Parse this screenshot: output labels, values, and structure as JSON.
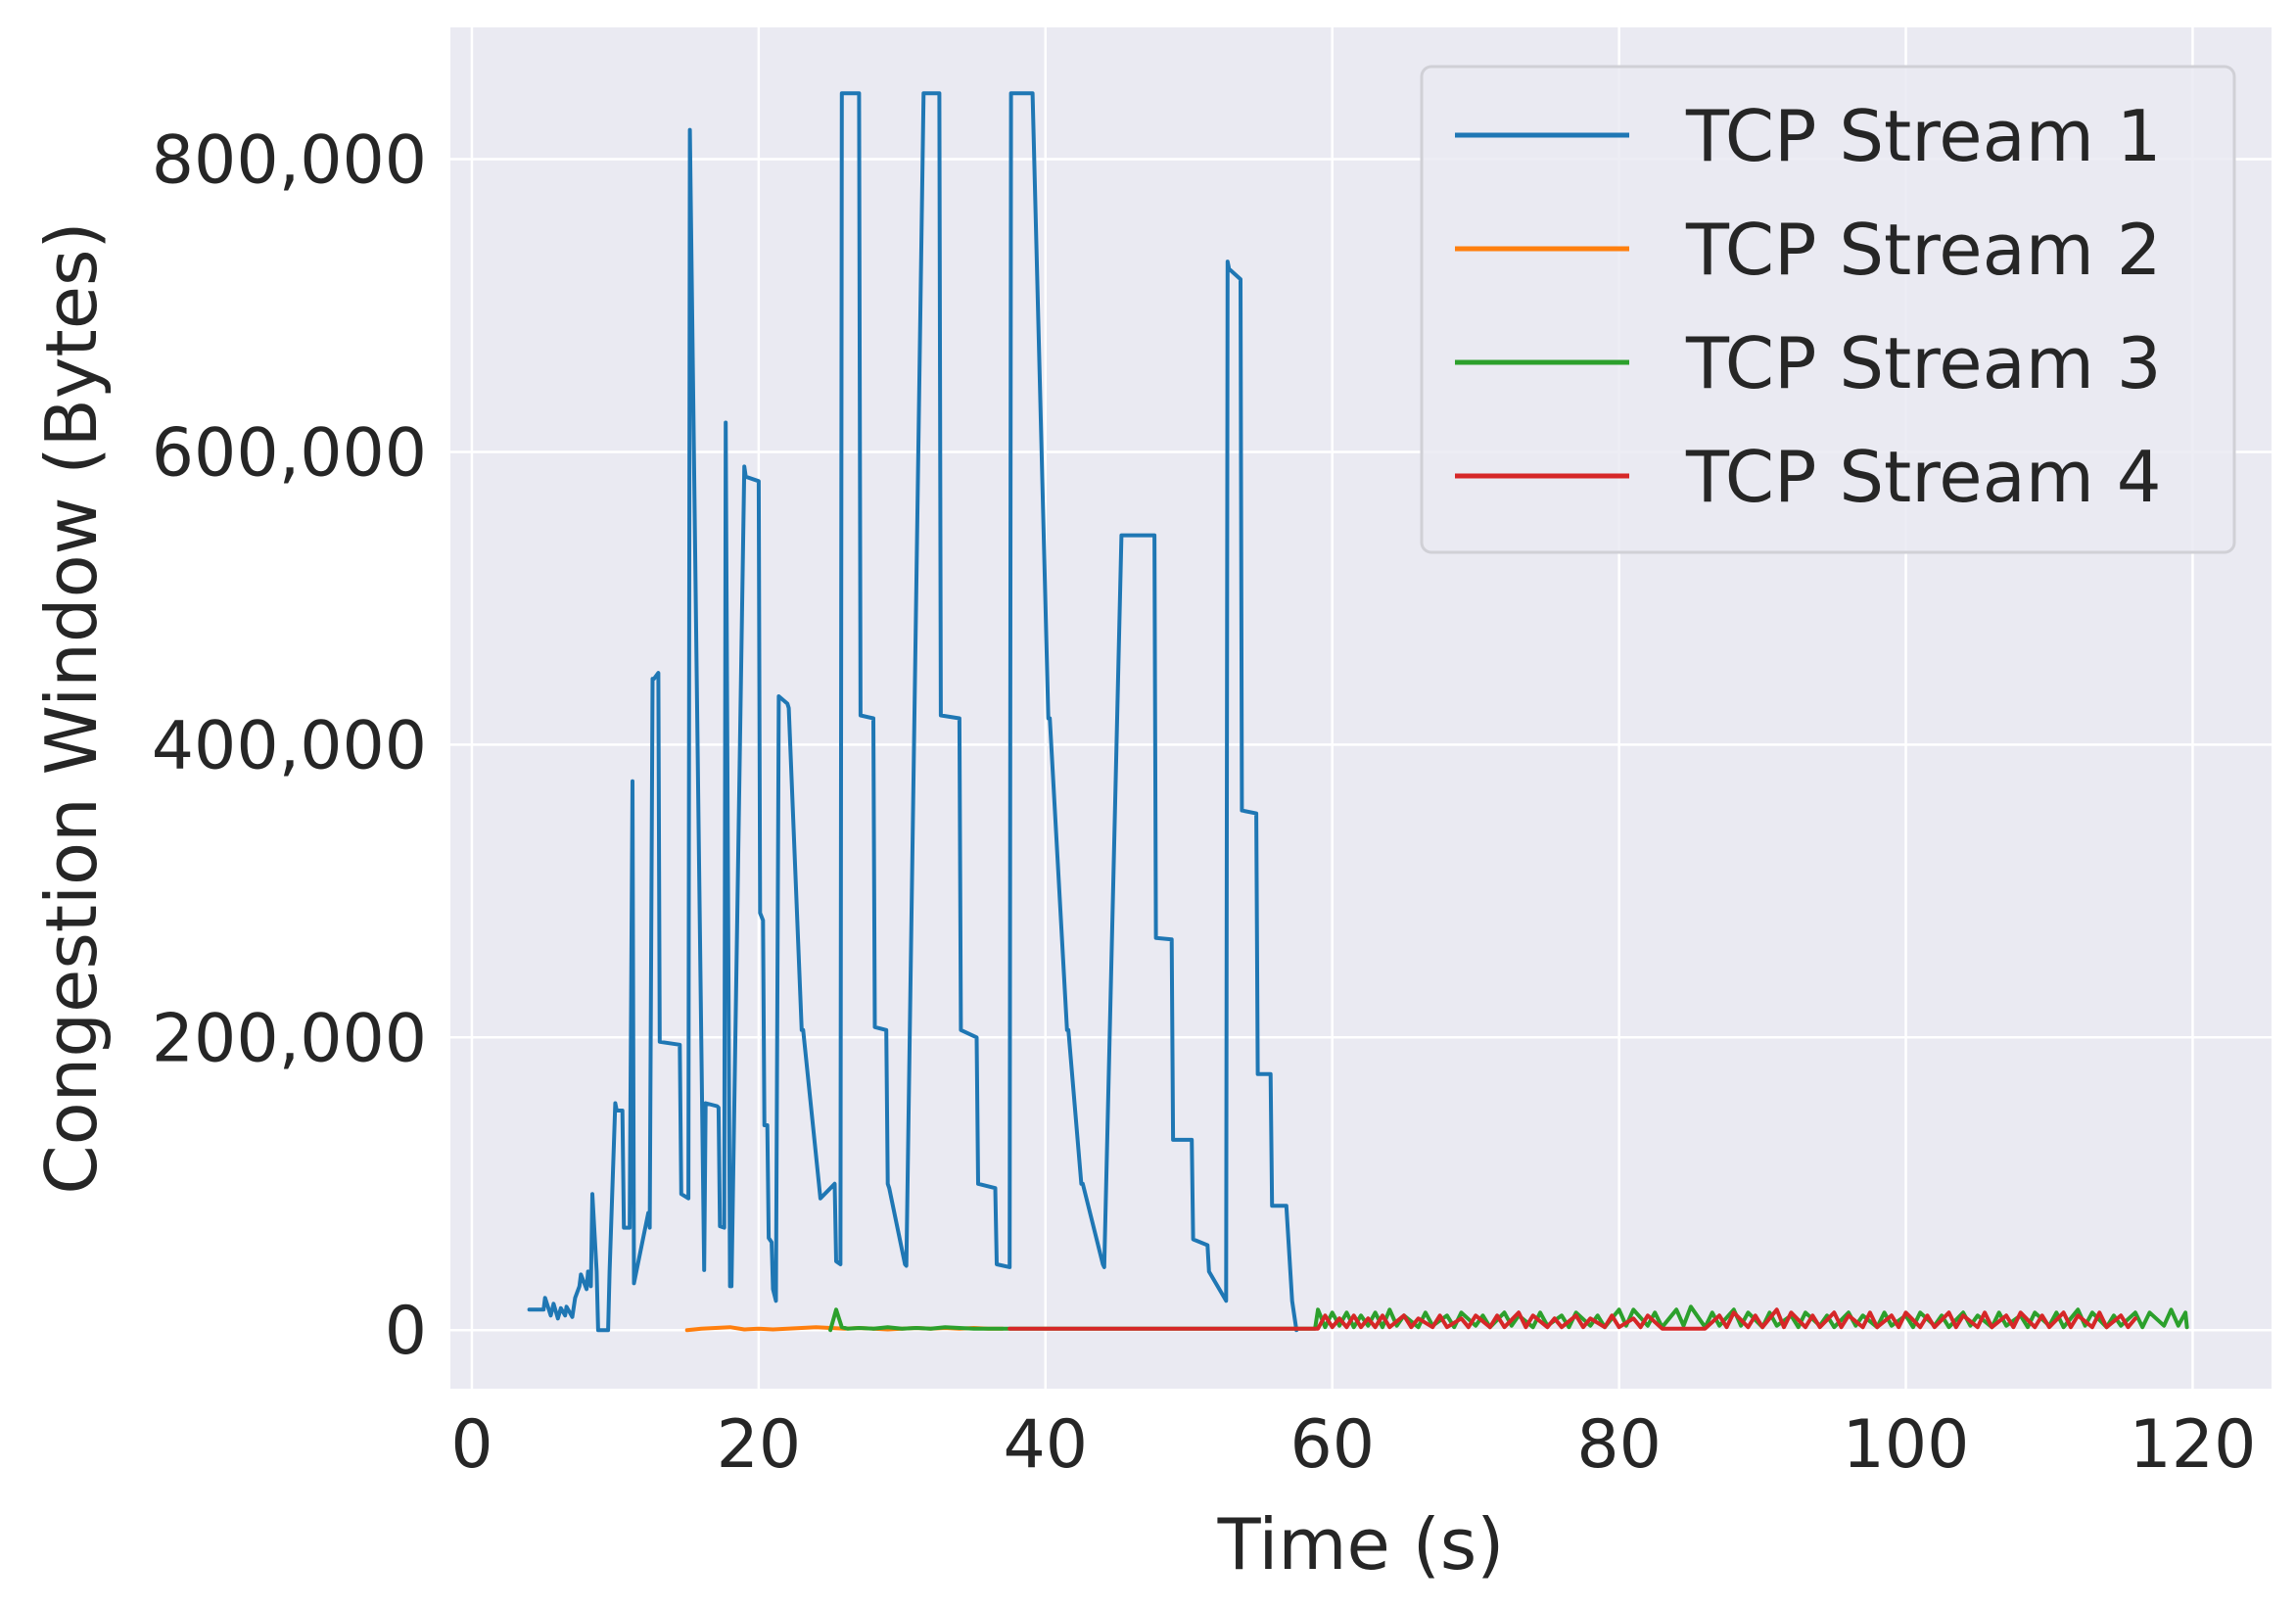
{
  "chart_data": {
    "type": "line",
    "title": "",
    "xlabel": "Time (s)",
    "ylabel": "Congestion Window (Bytes)",
    "xlim": [
      -1.5,
      125.5
    ],
    "ylim": [
      -40000,
      890000
    ],
    "xticks": [
      0,
      20,
      40,
      60,
      80,
      100,
      120
    ],
    "xtick_labels": [
      "0",
      "20",
      "40",
      "60",
      "80",
      "100",
      "120"
    ],
    "yticks": [
      0,
      200000,
      400000,
      600000,
      800000
    ],
    "ytick_labels": [
      "0",
      "200,000",
      "400,000",
      "600,000",
      "800,000"
    ],
    "grid": true,
    "background": "#eaeaf2",
    "legend_position": "top-right",
    "series": [
      {
        "name": "TCP Stream 1",
        "color": "#1f77b4",
        "x": [
          4.0,
          5.0,
          5.1,
          5.5,
          5.7,
          6.0,
          6.2,
          6.5,
          6.6,
          7.0,
          7.2,
          7.5,
          7.6,
          8.0,
          8.1,
          8.3,
          8.4,
          8.7,
          8.8,
          9.5,
          9.6,
          10.0,
          10.1,
          10.5,
          10.6,
          11.0,
          11.2,
          11.3,
          12.3,
          12.4,
          12.6,
          12.7,
          13.0,
          13.1,
          14.5,
          14.6,
          15.1,
          15.2,
          16.2,
          16.3,
          17.1,
          17.2,
          17.3,
          17.6,
          17.7,
          18.0,
          18.1,
          19.0,
          19.1,
          20.0,
          20.1,
          20.3,
          20.4,
          20.6,
          20.7,
          20.9,
          21.0,
          21.2,
          21.4,
          22.0,
          22.1,
          23.0,
          23.1,
          24.2,
          24.3,
          25.3,
          25.4,
          25.7,
          25.8,
          25.9,
          27.0,
          27.1,
          28.0,
          28.1,
          28.9,
          29.0,
          29.1,
          30.2,
          30.3,
          31.5,
          31.6,
          32.6,
          32.7,
          34.0,
          34.1,
          35.2,
          35.3,
          36.5,
          36.6,
          37.5,
          37.6,
          39.0,
          39.1,
          40.2,
          40.3,
          41.5,
          41.6,
          42.5,
          42.6,
          44.0,
          44.1,
          45.3,
          45.4,
          47.6,
          47.7,
          48.8,
          48.9,
          50.2,
          50.3,
          51.3,
          51.4,
          52.6,
          52.7,
          52.8,
          53.6,
          53.7,
          54.7,
          54.8,
          55.7,
          55.8,
          56.8,
          57.2,
          57.5
        ],
        "y": [
          14000,
          14000,
          22000,
          10000,
          18000,
          8000,
          15000,
          10000,
          16000,
          9000,
          22000,
          30000,
          38000,
          28000,
          40000,
          30000,
          93000,
          40000,
          0,
          0,
          40000,
          155000,
          150000,
          150000,
          70000,
          70000,
          375000,
          32000,
          80000,
          70000,
          445000,
          445000,
          449000,
          197000,
          195000,
          93000,
          90000,
          820000,
          41000,
          155000,
          153000,
          152000,
          71000,
          70000,
          620000,
          30000,
          30000,
          590000,
          583000,
          580000,
          285000,
          280000,
          140000,
          140000,
          63000,
          60000,
          28000,
          20000,
          433000,
          428000,
          425000,
          205000,
          205000,
          100000,
          90000,
          100000,
          47000,
          45000,
          845000,
          845000,
          845000,
          420000,
          418000,
          207000,
          205000,
          100000,
          97000,
          45000,
          44000,
          845000,
          845000,
          845000,
          420000,
          418000,
          205000,
          200000,
          100000,
          97000,
          45000,
          43000,
          845000,
          845000,
          845000,
          418000,
          418000,
          205000,
          205000,
          100000,
          100000,
          45000,
          43000,
          543000,
          543000,
          543000,
          268000,
          267000,
          130000,
          130000,
          62000,
          58000,
          40000,
          20000,
          730000,
          725000,
          718000,
          355000,
          353000,
          175000,
          175000,
          85000,
          85000,
          20000,
          0
        ]
      },
      {
        "name": "TCP Stream 2",
        "color": "#ff7f0e",
        "x": [
          15.0,
          16.0,
          17.0,
          18.0,
          19.0,
          20.0,
          21.0,
          22.0,
          23.0,
          24.0,
          25.0,
          26.0,
          27.0,
          28.0,
          29.0,
          30.0,
          31.0,
          32.0,
          33.0,
          34.0,
          35.0,
          36.0,
          37.0
        ],
        "y": [
          0,
          1000,
          1500,
          2000,
          500,
          1000,
          500,
          1000,
          1500,
          2000,
          1500,
          1000,
          1500,
          1000,
          500,
          1000,
          1500,
          1000,
          1500,
          1000,
          1500,
          1000,
          1000
        ]
      },
      {
        "name": "TCP Stream 3",
        "color": "#2ca02c",
        "x": [
          25.0,
          25.4,
          25.8,
          26.2,
          27.0,
          28.0,
          29.0,
          30.0,
          31.0,
          32.0,
          33.0,
          34.0,
          35.0,
          36.0,
          37.0,
          40.0,
          45.0,
          50.0,
          55.0,
          58.0,
          58.8,
          59.0,
          59.5,
          60.0,
          60.5,
          61.0,
          61.5,
          62.0,
          62.5,
          63.0,
          63.5,
          64.0,
          64.5,
          65.0,
          66.0,
          66.5,
          67.0,
          68.0,
          68.5,
          69.0,
          70.0,
          70.5,
          71.0,
          72.0,
          72.5,
          73.0,
          74.0,
          74.5,
          75.0,
          76.0,
          76.5,
          77.0,
          78.0,
          78.5,
          79.0,
          80.0,
          80.5,
          81.0,
          82.0,
          82.5,
          83.0,
          84.0,
          84.5,
          85.0,
          86.0,
          86.5,
          87.0,
          88.0,
          88.5,
          89.0,
          90.0,
          90.5,
          91.0,
          92.0,
          92.5,
          93.0,
          94.0,
          94.5,
          95.0,
          96.0,
          96.5,
          97.0,
          98.0,
          98.5,
          99.0,
          100.0,
          100.5,
          101.0,
          102.0,
          102.5,
          103.0,
          104.0,
          104.5,
          105.0,
          106.0,
          106.5,
          107.0,
          108.0,
          108.5,
          109.0,
          110.0,
          110.5,
          111.0,
          112.0,
          112.5,
          113.0,
          114.0,
          114.5,
          115.0,
          116.0,
          116.5,
          117.0,
          118.0,
          118.5,
          119.0,
          119.5,
          119.6
        ],
        "y": [
          0,
          14000,
          2000,
          1000,
          1500,
          1000,
          2000,
          1000,
          1500,
          1000,
          2000,
          1500,
          1000,
          1000,
          1000,
          1000,
          1000,
          1000,
          1000,
          1000,
          1000,
          14000,
          2000,
          12000,
          3000,
          12000,
          2000,
          10000,
          3000,
          12000,
          2000,
          14000,
          3000,
          10000,
          2000,
          12000,
          3000,
          10000,
          2000,
          12000,
          3000,
          10000,
          2000,
          12000,
          3000,
          10000,
          2000,
          12000,
          3000,
          10000,
          2000,
          12000,
          3000,
          10000,
          2000,
          14000,
          3000,
          14000,
          3000,
          12000,
          2000,
          14000,
          3000,
          16000,
          2000,
          12000,
          3000,
          14000,
          3000,
          12000,
          2000,
          12000,
          3000,
          10000,
          2000,
          12000,
          3000,
          10000,
          2000,
          12000,
          3000,
          10000,
          2000,
          12000,
          3000,
          10000,
          2000,
          12000,
          3000,
          10000,
          2000,
          12000,
          3000,
          10000,
          2000,
          12000,
          3000,
          10000,
          2000,
          12000,
          3000,
          12000,
          2000,
          14000,
          3000,
          12000,
          2000,
          10000,
          3000,
          12000,
          2000,
          12000,
          3000,
          14000,
          3000,
          12000,
          2000
        ]
      },
      {
        "name": "TCP Stream 4",
        "color": "#d62728",
        "x": [
          37.5,
          40.0,
          45.0,
          50.0,
          55.0,
          58.0,
          59.0,
          59.5,
          60.0,
          60.5,
          61.0,
          61.5,
          62.0,
          62.5,
          63.0,
          63.5,
          64.0,
          65.0,
          65.5,
          66.0,
          67.0,
          67.5,
          68.0,
          69.0,
          69.5,
          70.0,
          71.0,
          71.5,
          72.0,
          73.0,
          73.5,
          74.0,
          75.0,
          75.5,
          76.0,
          77.0,
          77.5,
          78.0,
          79.0,
          79.5,
          80.0,
          81.0,
          81.5,
          82.0,
          83.0,
          84.0,
          85.0,
          86.0,
          87.0,
          87.5,
          88.0,
          89.0,
          89.5,
          90.0,
          91.0,
          91.5,
          92.0,
          93.0,
          93.5,
          94.0,
          95.0,
          95.5,
          96.0,
          97.0,
          97.5,
          98.0,
          99.0,
          99.5,
          100.0,
          101.0,
          101.5,
          102.0,
          103.0,
          103.5,
          104.0,
          105.0,
          105.5,
          106.0,
          107.0,
          107.5,
          108.0,
          109.0,
          109.5,
          110.0,
          111.0,
          111.5,
          112.0,
          113.0,
          113.5,
          114.0,
          115.0,
          115.5,
          116.0
        ],
        "y": [
          1000,
          1000,
          1000,
          1000,
          1000,
          1000,
          1000,
          10000,
          2000,
          8000,
          2000,
          10000,
          2000,
          8000,
          2000,
          10000,
          2000,
          10000,
          2000,
          8000,
          2000,
          10000,
          2000,
          8000,
          2000,
          10000,
          2000,
          10000,
          2000,
          12000,
          2000,
          10000,
          2000,
          8000,
          2000,
          10000,
          2000,
          8000,
          2000,
          10000,
          2000,
          8000,
          2000,
          10000,
          1000,
          1000,
          1000,
          1000,
          10000,
          2000,
          12000,
          2000,
          10000,
          2000,
          14000,
          2000,
          12000,
          2000,
          10000,
          2000,
          12000,
          2000,
          10000,
          2000,
          12000,
          2000,
          10000,
          2000,
          12000,
          2000,
          10000,
          2000,
          12000,
          2000,
          10000,
          2000,
          12000,
          2000,
          10000,
          2000,
          12000,
          2000,
          10000,
          2000,
          12000,
          2000,
          10000,
          2000,
          12000,
          2000,
          10000,
          2000,
          8000
        ]
      }
    ]
  }
}
